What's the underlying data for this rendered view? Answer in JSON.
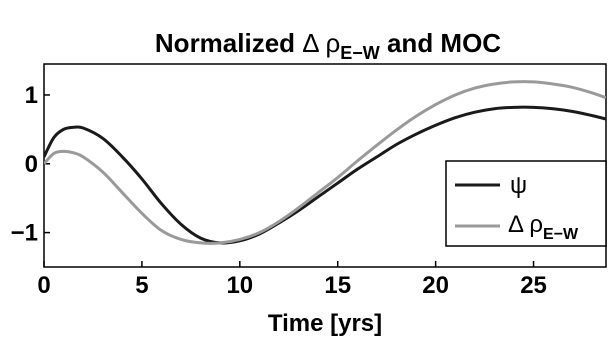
{
  "chart_data": {
    "type": "line",
    "title": {
      "prefix": "Normalized ",
      "symbol": "Δ ρ",
      "subscript": "E−W",
      "suffix": " and MOC"
    },
    "xlabel": "Time [yrs]",
    "ylabel": "",
    "xlim": [
      0,
      28.7
    ],
    "ylim": [
      -1.5,
      1.45
    ],
    "xticks": [
      "0",
      "5",
      "10",
      "15",
      "20",
      "25"
    ],
    "xtick_values": [
      0,
      5,
      10,
      15,
      20,
      25
    ],
    "yticks": [
      "−1",
      "0",
      "1"
    ],
    "ytick_values": [
      -1,
      0,
      1
    ],
    "grid": false,
    "legend_position": "right",
    "series": [
      {
        "name": "ψ",
        "color": "#1a1a1a",
        "x": [
          0,
          0.5,
          1,
          1.5,
          2,
          3,
          4,
          5,
          6,
          7,
          8,
          9,
          10,
          11,
          12,
          13,
          14,
          15,
          16,
          17,
          18,
          19,
          20,
          21,
          22,
          23,
          24,
          25,
          26,
          27,
          28,
          28.7
        ],
        "y": [
          0.1,
          0.38,
          0.5,
          0.53,
          0.52,
          0.37,
          0.1,
          -0.22,
          -0.58,
          -0.88,
          -1.08,
          -1.15,
          -1.12,
          -1.02,
          -0.86,
          -0.68,
          -0.48,
          -0.28,
          -0.08,
          0.1,
          0.28,
          0.43,
          0.56,
          0.67,
          0.75,
          0.8,
          0.82,
          0.82,
          0.8,
          0.76,
          0.7,
          0.65
        ]
      },
      {
        "name": "Δ ρ",
        "name_subscript": "E−W",
        "color": "#9a9a9a",
        "x": [
          0,
          0.5,
          1,
          1.5,
          2,
          3,
          4,
          5,
          6,
          7,
          8,
          9,
          10,
          11,
          12,
          13,
          14,
          15,
          16,
          17,
          18,
          19,
          20,
          21,
          22,
          23,
          24,
          25,
          26,
          27,
          28,
          28.7
        ],
        "y": [
          0.0,
          0.15,
          0.18,
          0.16,
          0.1,
          -0.12,
          -0.42,
          -0.72,
          -0.97,
          -1.1,
          -1.15,
          -1.15,
          -1.1,
          -1.0,
          -0.84,
          -0.64,
          -0.42,
          -0.2,
          0.04,
          0.27,
          0.49,
          0.69,
          0.86,
          1.0,
          1.1,
          1.16,
          1.19,
          1.19,
          1.16,
          1.11,
          1.03,
          0.96
        ]
      }
    ]
  }
}
